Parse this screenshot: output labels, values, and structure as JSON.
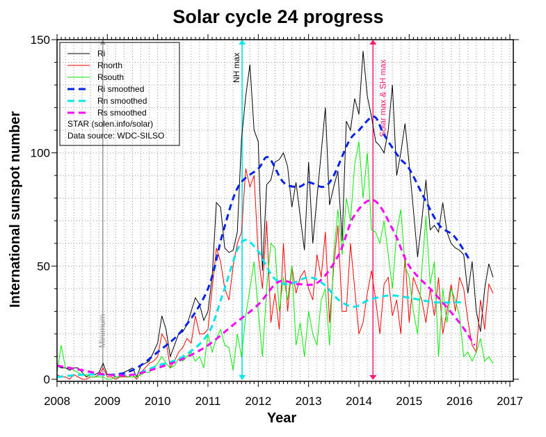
{
  "chart_data": {
    "type": "line",
    "title": "Solar cycle 24 progress",
    "xlabel": "Year",
    "ylabel": "International sunspot number",
    "xlim": [
      2008,
      2017
    ],
    "ylim": [
      0,
      150
    ],
    "xticks": [
      "2008",
      "2009",
      "2010",
      "2011",
      "2012",
      "2013",
      "2014",
      "2015",
      "2016",
      "2017"
    ],
    "yticks": [
      "0",
      "50",
      "100",
      "150"
    ],
    "grid": true,
    "legend_position": "top-left",
    "legend_notes": [
      "STAR (solen.info/solar)",
      "Data source: WDC-SILSO"
    ],
    "x": [
      2008,
      2008.083,
      2008.167,
      2008.25,
      2008.333,
      2008.417,
      2008.5,
      2008.583,
      2008.667,
      2008.75,
      2008.833,
      2008.917,
      2009,
      2009.083,
      2009.167,
      2009.25,
      2009.333,
      2009.417,
      2009.5,
      2009.583,
      2009.667,
      2009.75,
      2009.833,
      2009.917,
      2010,
      2010.083,
      2010.167,
      2010.25,
      2010.333,
      2010.417,
      2010.5,
      2010.583,
      2010.667,
      2010.75,
      2010.833,
      2010.917,
      2011,
      2011.083,
      2011.167,
      2011.25,
      2011.333,
      2011.417,
      2011.5,
      2011.583,
      2011.667,
      2011.75,
      2011.833,
      2011.917,
      2012,
      2012.083,
      2012.167,
      2012.25,
      2012.333,
      2012.417,
      2012.5,
      2012.583,
      2012.667,
      2012.75,
      2012.833,
      2012.917,
      2013,
      2013.083,
      2013.167,
      2013.25,
      2013.333,
      2013.417,
      2013.5,
      2013.583,
      2013.667,
      2013.75,
      2013.833,
      2013.917,
      2014,
      2014.083,
      2014.167,
      2014.25,
      2014.333,
      2014.417,
      2014.5,
      2014.583,
      2014.667,
      2014.75,
      2014.833,
      2014.917,
      2015,
      2015.083,
      2015.167,
      2015.25,
      2015.333,
      2015.417,
      2015.5,
      2015.583,
      2015.667,
      2015.75,
      2015.833,
      2015.917,
      2016,
      2016.083,
      2016.167,
      2016.25,
      2016.333,
      2016.417,
      2016.5,
      2016.583,
      2016.667
    ],
    "series": [
      {
        "name": "Ri",
        "color": "#000000",
        "style": "solid",
        "values": [
          6,
          5,
          5,
          4,
          5,
          5,
          3,
          1,
          2,
          2,
          3,
          7,
          2,
          2,
          1,
          1,
          3,
          4,
          5,
          1,
          6,
          7,
          8,
          12,
          16,
          28,
          22,
          10,
          15,
          20,
          21,
          24,
          30,
          36,
          33,
          26,
          30,
          45,
          78,
          76,
          58,
          56,
          57,
          65,
          106,
          125,
          139,
          110,
          105,
          48,
          86,
          88,
          96,
          97,
          100,
          94,
          76,
          87,
          72,
          57,
          96,
          60,
          80,
          100,
          120,
          77,
          85,
          92,
          61,
          114,
          110,
          124,
          117,
          145,
          125,
          116,
          105,
          103,
          100,
          110,
          130,
          90,
          100,
          113,
          95,
          75,
          54,
          70,
          88,
          66,
          68,
          65,
          78,
          65,
          60,
          58,
          57,
          55,
          38,
          52,
          30,
          21,
          40,
          51,
          45
        ]
      },
      {
        "name": "Rnorth",
        "color": "#ff0000",
        "style": "solid",
        "values": [
          2,
          1,
          1,
          0,
          2,
          1,
          0,
          0,
          1,
          1,
          2,
          5,
          1,
          1,
          0,
          1,
          1,
          1,
          2,
          0,
          3,
          5,
          7,
          8,
          10,
          20,
          17,
          5,
          8,
          12,
          14,
          18,
          16,
          28,
          20,
          20,
          22,
          40,
          58,
          52,
          40,
          35,
          50,
          60,
          65,
          93,
          85,
          90,
          55,
          40,
          70,
          25,
          38,
          22,
          60,
          30,
          50,
          38,
          45,
          48,
          40,
          35,
          55,
          45,
          65,
          25,
          50,
          68,
          30,
          30,
          60,
          40,
          20,
          25,
          38,
          48,
          35,
          20,
          42,
          45,
          28,
          35,
          20,
          55,
          25,
          45,
          40,
          35,
          25,
          40,
          28,
          45,
          20,
          30,
          42,
          30,
          45,
          40,
          26,
          15,
          12,
          35,
          22,
          42,
          38
        ]
      },
      {
        "name": "Rsouth",
        "color": "#00ee00",
        "style": "solid",
        "values": [
          3,
          15,
          5,
          5,
          4,
          3,
          2,
          2,
          1,
          1,
          1,
          1,
          0,
          0,
          1,
          1,
          2,
          1,
          1,
          1,
          2,
          3,
          3,
          5,
          7,
          10,
          7,
          5,
          6,
          9,
          8,
          10,
          12,
          8,
          10,
          5,
          20,
          12,
          18,
          22,
          15,
          14,
          4,
          20,
          10,
          28,
          40,
          52,
          30,
          10,
          40,
          60,
          58,
          30,
          45,
          35,
          50,
          15,
          25,
          10,
          30,
          20,
          15,
          35,
          40,
          15,
          55,
          75,
          55,
          80,
          70,
          95,
          105,
          80,
          100,
          66,
          65,
          60,
          70,
          55,
          40,
          65,
          75,
          50,
          45,
          30,
          20,
          48,
          72,
          42,
          52,
          10,
          40,
          25,
          40,
          35,
          28,
          10,
          12,
          8,
          12,
          18,
          8,
          10,
          7
        ]
      }
    ],
    "smoothed": [
      {
        "name": "Ri smoothed",
        "color": "#0022ee",
        "style": "dashed",
        "x": [
          2008,
          2008.5,
          2009,
          2009.5,
          2010,
          2010.5,
          2011,
          2011.3,
          2011.6,
          2012,
          2012.2,
          2012.5,
          2012.8,
          2013,
          2013.3,
          2013.5,
          2013.8,
          2014,
          2014.3,
          2014.5,
          2014.8,
          2015,
          2015.3,
          2015.6,
          2015.9,
          2016.22
        ],
        "y": [
          6,
          4,
          2,
          4,
          12,
          22,
          40,
          65,
          85,
          93,
          98,
          87,
          85,
          87,
          85,
          90,
          105,
          110,
          116,
          108,
          98,
          93,
          80,
          68,
          63,
          52
        ]
      },
      {
        "name": "Rn smoothed",
        "color": "#00e5ee",
        "style": "dashed",
        "x": [
          2008,
          2008.5,
          2009,
          2009.5,
          2010,
          2010.5,
          2011,
          2011.3,
          2011.65,
          2011.95,
          2012.3,
          2012.6,
          2013,
          2013.3,
          2013.6,
          2013.9,
          2014.2,
          2014.6,
          2015,
          2015.5,
          2016,
          2016.07
        ],
        "y": [
          1,
          2,
          2,
          2,
          6,
          10,
          20,
          38,
          60,
          58,
          45,
          42,
          45,
          42,
          35,
          32,
          35,
          37,
          36,
          34,
          34,
          34
        ]
      },
      {
        "name": "Rs smoothed",
        "color": "#ff00ff",
        "style": "dashed",
        "x": [
          2008,
          2008.5,
          2009,
          2009.5,
          2010,
          2010.5,
          2011,
          2011.5,
          2012,
          2012.4,
          2012.8,
          2013.2,
          2013.6,
          2013.9,
          2014.3,
          2014.7,
          2015,
          2015.5,
          2016,
          2016.3
        ],
        "y": [
          6,
          4,
          2,
          2,
          5,
          9,
          15,
          24,
          33,
          43,
          42,
          43,
          55,
          72,
          79,
          65,
          50,
          38,
          25,
          15
        ]
      }
    ],
    "annotations": [
      {
        "label": "Minimum",
        "x": 2008.91,
        "color": "#999999"
      },
      {
        "label": "NH max",
        "x": 2011.68,
        "color": "#00e5ee"
      },
      {
        "label": "Solar max & SH max",
        "x": 2014.28,
        "color": "#ff1a75"
      }
    ]
  }
}
